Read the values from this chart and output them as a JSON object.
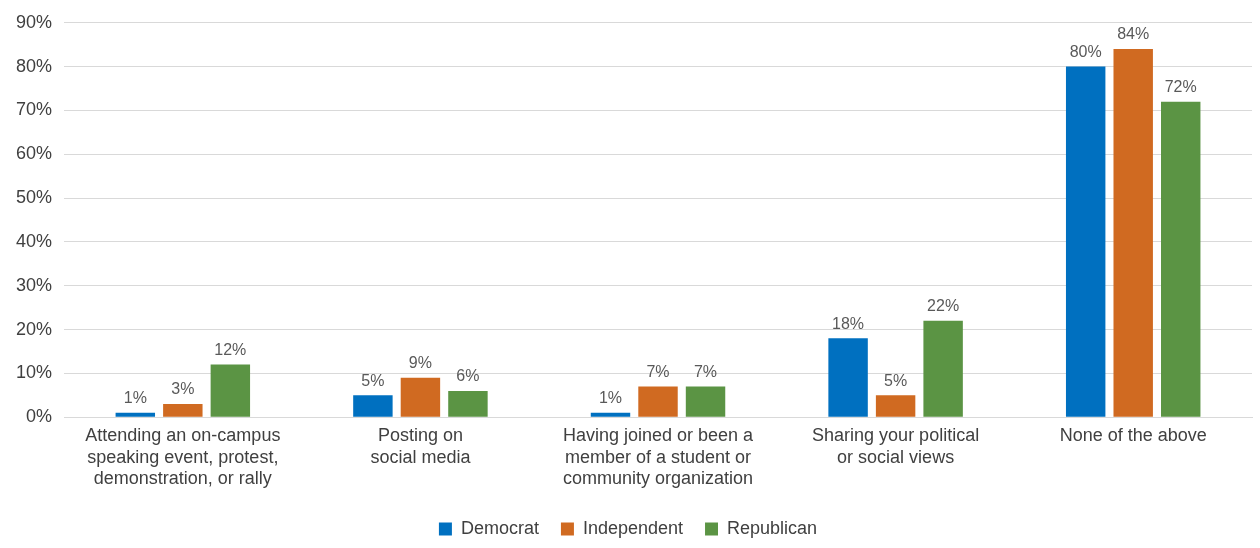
{
  "chart_data": {
    "type": "bar",
    "categories": [
      "Attending an on-campus\nspeaking event, protest,\ndemonstration, or rally",
      "Posting on\nsocial media",
      "Having joined or been a\nmember of a student or\ncommunity organization",
      "Sharing your political\nor social views",
      "None of the above"
    ],
    "series": [
      {
        "name": "Democrat",
        "color": "#0070c0",
        "values": [
          1,
          5,
          1,
          18,
          80
        ],
        "value_labels": [
          "1%",
          "5%",
          "1%",
          "18%",
          "80%"
        ]
      },
      {
        "name": "Independent",
        "color": "#d06a21",
        "values": [
          3,
          9,
          7,
          5,
          84
        ],
        "value_labels": [
          "3%",
          "9%",
          "7%",
          "5%",
          "84%"
        ]
      },
      {
        "name": "Republican",
        "color": "#5b9444",
        "values": [
          12,
          6,
          7,
          22,
          72
        ],
        "value_labels": [
          "12%",
          "6%",
          "7%",
          "22%",
          "72%"
        ]
      }
    ],
    "ylim": [
      0,
      90
    ],
    "yticks": [
      {
        "value": 0,
        "label": "0%"
      },
      {
        "value": 10,
        "label": "10%"
      },
      {
        "value": 20,
        "label": "20%"
      },
      {
        "value": 30,
        "label": "30%"
      },
      {
        "value": 40,
        "label": "40%"
      },
      {
        "value": 50,
        "label": "50%"
      },
      {
        "value": 60,
        "label": "60%"
      },
      {
        "value": 70,
        "label": "70%"
      },
      {
        "value": 80,
        "label": "80%"
      },
      {
        "value": 90,
        "label": "90%"
      }
    ],
    "grid": "y",
    "legend": "bottom"
  }
}
